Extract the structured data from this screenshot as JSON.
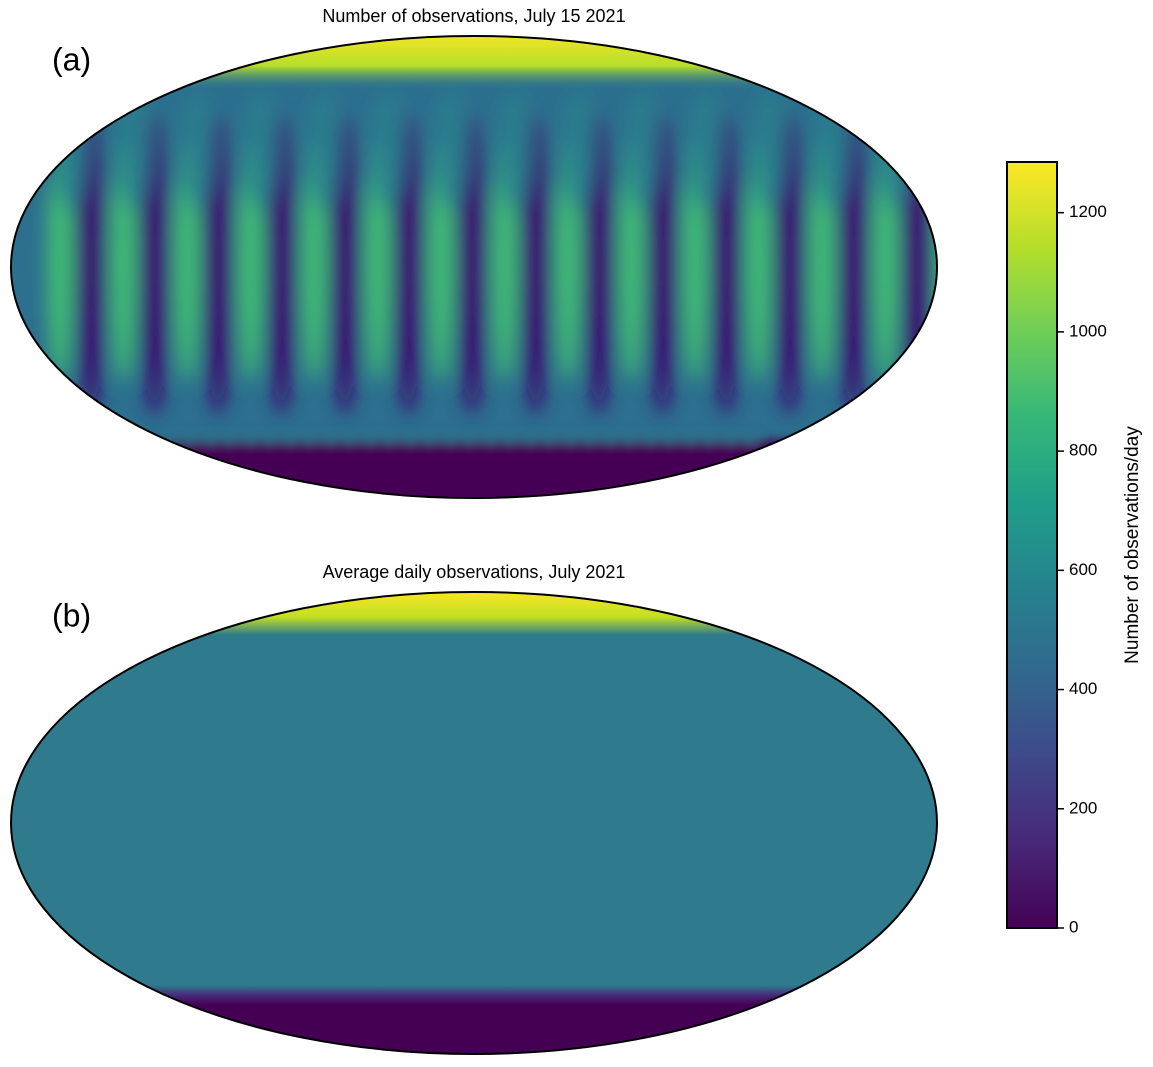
{
  "chart_data": [
    {
      "type": "map",
      "title": "Number of observations, July 15 2021",
      "panel_label": "(a)"
    },
    {
      "type": "map",
      "title": "Average daily observations, July 2021",
      "panel_label": "(b)"
    },
    {
      "type": "colorbar",
      "label": "Number of observations/day",
      "colormap": "viridis",
      "ylim": [
        0,
        1285
      ],
      "yticks": [
        0,
        200,
        400,
        600,
        800,
        1000,
        1200
      ]
    }
  ]
}
